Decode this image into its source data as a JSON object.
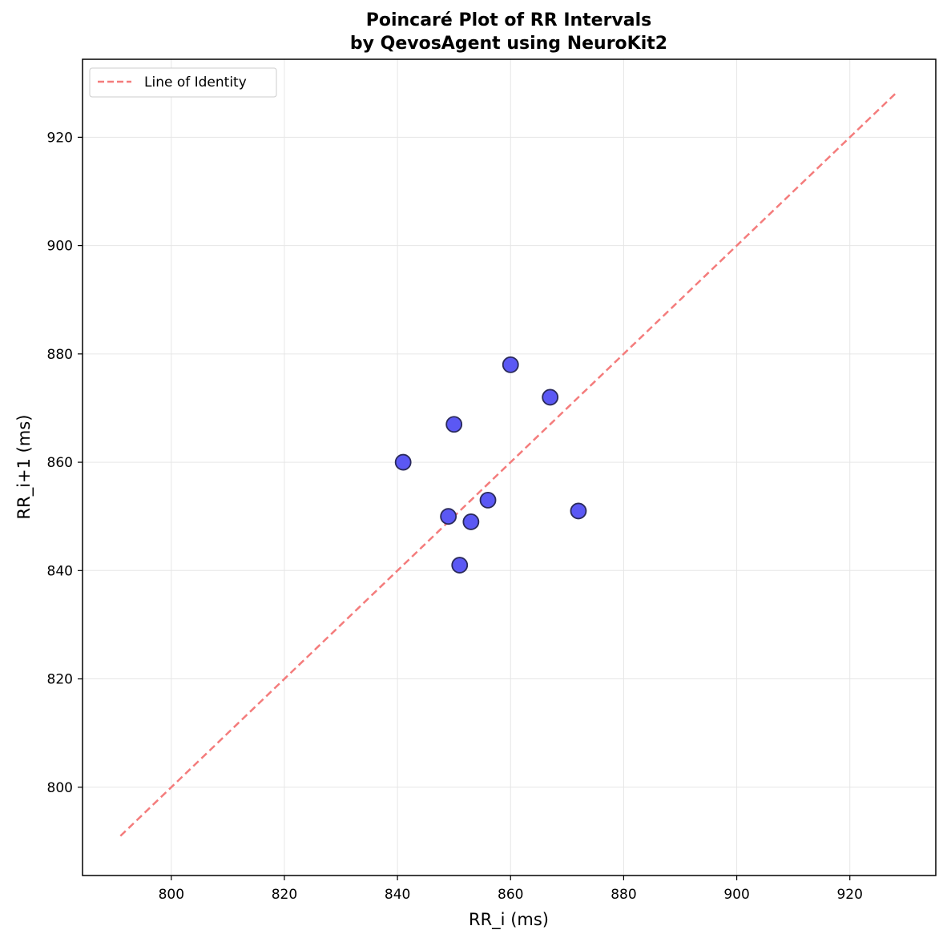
{
  "chart_data": {
    "type": "scatter",
    "title_lines": [
      "Poincaré Plot of RR Intervals",
      "by QevosAgent using NeuroKit2"
    ],
    "xlabel": "RR_i (ms)",
    "ylabel": "RR_i+1 (ms)",
    "xlim": [
      784.3,
      935.2
    ],
    "ylim": [
      783.7,
      934.4
    ],
    "xticks": [
      800,
      820,
      840,
      860,
      880,
      900,
      920
    ],
    "yticks": [
      800,
      820,
      840,
      860,
      880,
      900,
      920
    ],
    "grid": true,
    "legend": {
      "position": "top-left",
      "entries": [
        "Line of Identity"
      ]
    },
    "colors": {
      "points": "#5b58f4",
      "point_edge": "#2a2a5a",
      "identity_line": "#f47c7c",
      "grid": "#e6e6e6"
    },
    "series": [
      {
        "type": "scatter",
        "x": [
          841,
          849,
          850,
          851,
          853,
          856,
          860,
          867,
          872
        ],
        "y": [
          860,
          850,
          867,
          841,
          849,
          853,
          878,
          872,
          851
        ]
      },
      {
        "type": "line",
        "name": "Line of Identity",
        "style": "dashed",
        "x": [
          791,
          928
        ],
        "y": [
          791,
          928
        ]
      }
    ]
  }
}
